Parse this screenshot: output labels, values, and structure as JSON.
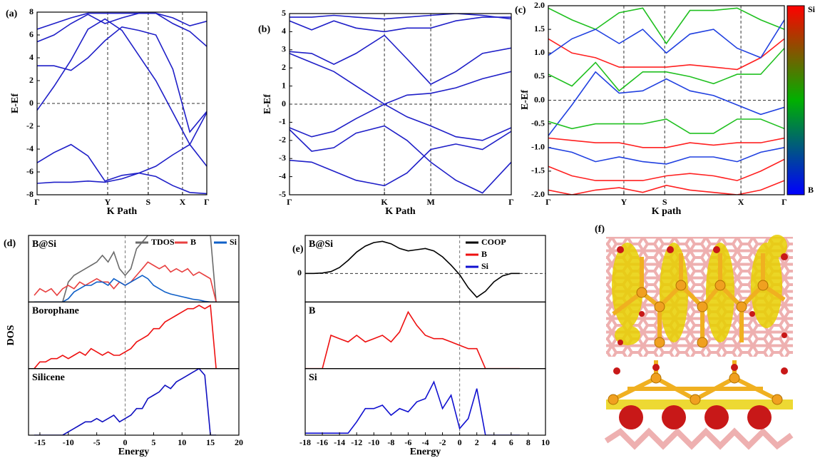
{
  "chart_data": [
    {
      "type": "line",
      "label": "(a)",
      "ylabel": "E-Ef",
      "xlabel": "K Path",
      "kgrid": true,
      "zero_line": true,
      "xlim": [
        0,
        1
      ],
      "xticks": [
        {
          "value": 0,
          "label": "Γ"
        },
        {
          "value": 0.416,
          "label": "Y"
        },
        {
          "value": 0.655,
          "label": "S"
        },
        {
          "value": 0.857,
          "label": "X"
        },
        {
          "value": 1,
          "label": "Γ"
        }
      ],
      "ylim": [
        -8,
        8
      ],
      "yticks": [
        -8,
        -6,
        -4,
        -2,
        0,
        2,
        4,
        6,
        8
      ],
      "x": [
        0,
        0.1,
        0.2,
        0.3,
        0.4,
        0.5,
        0.6,
        0.7,
        0.8,
        0.9,
        1
      ],
      "series": [
        {
          "color": "#1f1fc8",
          "values": [
            -7,
            -6.9,
            -6.9,
            -6.8,
            -6.9,
            -6.6,
            -6.1,
            -6.4,
            -7.2,
            -7.8,
            -7.9
          ]
        },
        {
          "color": "#1f1fc8",
          "values": [
            -5.2,
            -4.3,
            -3.6,
            -4.6,
            -6.8,
            -6.3,
            -6.1,
            -5.5,
            -4.5,
            -3.6,
            -5.5
          ]
        },
        {
          "color": "#1f1fc8",
          "values": [
            -0.6,
            1.5,
            3.8,
            6.5,
            7.4,
            6.4,
            4.2,
            2.0,
            -0.8,
            -3.6,
            -0.8
          ]
        },
        {
          "color": "#1f1fc8",
          "values": [
            3.3,
            3.3,
            2.9,
            4.0,
            5.5,
            6.7,
            6.4,
            6.0,
            3.0,
            -2.5,
            -0.7
          ]
        },
        {
          "color": "#1f1fc8",
          "values": [
            5.4,
            6.0,
            7.0,
            7.8,
            7.0,
            7.5,
            7.9,
            7.9,
            7.0,
            6.3,
            5.0
          ]
        },
        {
          "color": "#1f1fc8",
          "values": [
            6.5,
            7.0,
            7.5,
            7.9,
            7.9,
            7.9,
            7.9,
            7.9,
            7.5,
            6.8,
            7.2
          ]
        }
      ]
    },
    {
      "type": "line",
      "label": "(b)",
      "ylabel": "E-Ef",
      "xlabel": "K Path",
      "kgrid": true,
      "zero_line": true,
      "xlim": [
        0,
        1
      ],
      "xticks": [
        {
          "value": 0,
          "label": "Γ"
        },
        {
          "value": 0.428,
          "label": "K"
        },
        {
          "value": 0.637,
          "label": "M"
        },
        {
          "value": 1,
          "label": "Γ"
        }
      ],
      "ylim": [
        -5,
        5
      ],
      "yticks": [
        -5,
        -4,
        -3,
        -2,
        -1,
        0,
        1,
        2,
        3,
        4,
        5
      ],
      "x": [
        0,
        0.1,
        0.2,
        0.3,
        0.428,
        0.53,
        0.637,
        0.75,
        0.87,
        1
      ],
      "series": [
        {
          "color": "#1f1fc8",
          "values": [
            2.8,
            2.3,
            1.8,
            1.0,
            0,
            0.5,
            0.6,
            0.9,
            1.4,
            1.8
          ]
        },
        {
          "color": "#1f1fc8",
          "values": [
            -1.3,
            -1.8,
            -1.5,
            -0.8,
            0,
            -0.7,
            -1.2,
            -1.8,
            -2.0,
            -1.3
          ]
        },
        {
          "color": "#1f1fc8",
          "values": [
            -3.1,
            -3.2,
            -3.7,
            -4.2,
            -4.5,
            -3.8,
            -2.5,
            -2.2,
            -2.5,
            -1.5
          ]
        },
        {
          "color": "#1f1fc8",
          "values": [
            -1.4,
            -2.6,
            -2.4,
            -1.6,
            -1.2,
            -2.0,
            -3.2,
            -4.2,
            -4.9,
            -3.2
          ]
        },
        {
          "color": "#1f1fc8",
          "values": [
            2.9,
            2.8,
            2.2,
            2.8,
            3.8,
            2.5,
            1.1,
            1.8,
            2.8,
            3.1
          ]
        },
        {
          "color": "#1f1fc8",
          "values": [
            4.6,
            4.1,
            4.6,
            4.2,
            4.0,
            4.2,
            4.2,
            4.6,
            4.8,
            4.8
          ]
        },
        {
          "color": "#1f1fc8",
          "values": [
            4.8,
            4.8,
            4.9,
            4.8,
            4.7,
            4.8,
            4.9,
            5,
            4.9,
            4.7
          ]
        }
      ]
    },
    {
      "type": "line",
      "label": "(c)",
      "ylabel": "E-Ef",
      "xlabel": "K path",
      "kgrid": true,
      "zero_line": true,
      "xlim": [
        0,
        1
      ],
      "xticks": [
        {
          "value": 0,
          "label": "Γ"
        },
        {
          "value": 0.32,
          "label": "Y"
        },
        {
          "value": 0.493,
          "label": "S"
        },
        {
          "value": 0.816,
          "label": "X"
        },
        {
          "value": 1,
          "label": "Γ"
        }
      ],
      "ylim": [
        -2,
        2
      ],
      "yticks": [
        {
          "value": -2,
          "label": "-2.0"
        },
        -1.5,
        {
          "value": -1,
          "label": "-1.0"
        },
        -0.5,
        {
          "value": 0,
          "label": "0.0"
        },
        0.5,
        {
          "value": 1,
          "label": "1.0"
        },
        1.5,
        {
          "value": 2,
          "label": "2.0"
        }
      ],
      "colorbar_colors": [
        "#0000ff",
        "#00b000",
        "#ff0000"
      ],
      "colorbar_top": "Si",
      "colorbar_bottom": "B",
      "x": [
        0,
        0.1,
        0.2,
        0.3,
        0.4,
        0.5,
        0.6,
        0.7,
        0.8,
        0.9,
        1
      ],
      "series": [
        {
          "color": "#ff2020",
          "values": [
            1.3,
            1.0,
            0.9,
            0.7,
            0.7,
            0.7,
            0.75,
            0.7,
            0.65,
            0.9,
            1.3
          ]
        },
        {
          "color": "#20c020",
          "values": [
            0.55,
            0.3,
            0.8,
            0.2,
            0.6,
            0.6,
            0.5,
            0.35,
            0.55,
            0.55,
            1.1
          ]
        },
        {
          "color": "#2040e0",
          "values": [
            -0.75,
            -0.1,
            0.6,
            0.15,
            0.2,
            0.45,
            0.2,
            0.1,
            -0.1,
            -0.3,
            -0.15
          ]
        },
        {
          "color": "#20c020",
          "values": [
            -0.45,
            -0.6,
            -0.5,
            -0.5,
            -0.5,
            -0.4,
            -0.7,
            -0.7,
            -0.4,
            -0.4,
            -0.6
          ]
        },
        {
          "color": "#ff2020",
          "values": [
            -0.8,
            -0.85,
            -0.9,
            -0.9,
            -1.0,
            -1.0,
            -0.9,
            -0.95,
            -0.9,
            -0.9,
            -0.8
          ]
        },
        {
          "color": "#2040e0",
          "values": [
            -1.0,
            -1.1,
            -1.3,
            -1.2,
            -1.3,
            -1.35,
            -1.2,
            -1.2,
            -1.3,
            -1.1,
            -1.0
          ]
        },
        {
          "color": "#ff2020",
          "values": [
            -1.4,
            -1.6,
            -1.7,
            -1.7,
            -1.7,
            -1.6,
            -1.55,
            -1.6,
            -1.7,
            -1.5,
            -1.25
          ]
        },
        {
          "color": "#20c020",
          "values": [
            1.95,
            1.7,
            1.5,
            1.85,
            1.95,
            1.2,
            1.9,
            1.9,
            1.95,
            1.7,
            1.5
          ]
        },
        {
          "color": "#2040e0",
          "values": [
            0.95,
            1.3,
            1.5,
            1.2,
            1.5,
            1.0,
            1.4,
            1.5,
            1.1,
            0.9,
            1.7
          ]
        },
        {
          "color": "#ff2020",
          "values": [
            -1.9,
            -2.0,
            -1.9,
            -1.85,
            -1.95,
            -1.8,
            -1.9,
            -1.95,
            -2.0,
            -1.9,
            -1.7
          ]
        }
      ]
    },
    {
      "type": "line",
      "label": "(d)",
      "ylabel": "DOS",
      "xlabel": "Energy",
      "zero_vline": true,
      "xlim": [
        -17,
        20
      ],
      "xticks": [
        -15,
        -10,
        -5,
        0,
        5,
        10,
        15,
        20
      ],
      "x": [
        -16,
        -15,
        -14,
        -13,
        -12,
        -11,
        -10,
        -9,
        -8,
        -7,
        -6,
        -5,
        -4,
        -3,
        -2,
        -1,
        0,
        1,
        2,
        3,
        4,
        5,
        6,
        7,
        8,
        9,
        10,
        11,
        12,
        13,
        14,
        15,
        16
      ],
      "panels": [
        {
          "title": "B@Si",
          "ylim": [
            0,
            10
          ],
          "series": [
            {
              "name": "TDOS",
              "color": "#6a6a6a",
              "values": [
                0,
                0,
                0,
                0,
                0,
                0,
                3,
                4,
                4.5,
                5,
                5.5,
                6,
                7,
                6,
                7.5,
                5,
                4,
                5,
                8,
                9,
                10,
                10,
                10,
                10,
                10,
                10,
                10,
                10,
                10,
                10,
                10,
                10,
                0
              ]
            },
            {
              "name": "B",
              "color": "#e84040",
              "values": [
                1,
                2,
                1.5,
                2,
                1,
                2,
                2.5,
                2,
                3,
                2.5,
                3,
                3.5,
                3,
                3,
                2,
                3,
                2.5,
                3,
                4,
                5,
                6,
                5.5,
                5,
                5.5,
                4.5,
                5,
                4.5,
                5,
                4,
                4.5,
                4,
                3.5,
                0
              ]
            },
            {
              "name": "Si",
              "color": "#1060c8",
              "values": [
                0,
                0,
                0,
                0,
                0,
                0,
                0.5,
                1.5,
                2,
                2.5,
                2.5,
                3,
                3,
                2.5,
                3.5,
                3,
                2.5,
                3,
                3.5,
                4,
                3.5,
                2.5,
                2,
                1.5,
                1.2,
                1,
                0.8,
                0.6,
                0.4,
                0.3,
                0.1,
                0,
                0
              ]
            }
          ]
        },
        {
          "title": "Borophane",
          "ylim": [
            0,
            10
          ],
          "series": [
            {
              "color": "#ee1010",
              "values": [
                0,
                1,
                1,
                1.5,
                1.5,
                2,
                1.5,
                2,
                2.5,
                2,
                3,
                2.5,
                2,
                2.5,
                2,
                2,
                2.5,
                3,
                4,
                4.5,
                5,
                6,
                6,
                7,
                7.5,
                8,
                8.5,
                9,
                9,
                9.5,
                9,
                9.5,
                0
              ]
            }
          ]
        },
        {
          "title": "Silicene",
          "ylim": [
            0,
            10
          ],
          "series": [
            {
              "color": "#1010c0",
              "values": [
                0,
                0,
                0,
                0,
                0,
                0,
                0.5,
                1,
                1.5,
                2,
                2,
                2.5,
                2,
                2.5,
                3,
                2,
                2.5,
                3,
                4,
                4,
                5.5,
                6,
                6.5,
                7.5,
                7,
                8,
                8.5,
                9,
                9.5,
                10,
                9,
                0,
                0
              ]
            }
          ]
        }
      ]
    },
    {
      "type": "line",
      "label": "(e)",
      "xlabel": "Energy",
      "zero_vline": true,
      "xlim": [
        -18,
        10
      ],
      "xticks": [
        -18,
        -16,
        -14,
        -12,
        -10,
        -8,
        -6,
        -4,
        -2,
        0,
        2,
        4,
        6,
        8,
        10
      ],
      "x": [
        -18,
        -17,
        -16,
        -15,
        -14,
        -13,
        -12,
        -11,
        -10,
        -9,
        -8,
        -7,
        -6,
        -5,
        -4,
        -3,
        -2,
        -1,
        0,
        1,
        2,
        3,
        4,
        5,
        6,
        7
      ],
      "panels": [
        {
          "title": "B@Si",
          "ylim": [
            -1.2,
            1.6
          ],
          "yticks": [
            0
          ],
          "zero_line": true,
          "series": [
            {
              "name": "COOP",
              "color": "#000000",
              "values": [
                0,
                0,
                0.02,
                0.08,
                0.25,
                0.55,
                0.9,
                1.15,
                1.3,
                1.35,
                1.25,
                1.05,
                0.95,
                1.0,
                1.05,
                0.95,
                0.7,
                0.35,
                -0.05,
                -0.6,
                -1.0,
                -0.75,
                -0.35,
                -0.1,
                0,
                0
              ]
            }
          ]
        },
        {
          "title": "B",
          "ylim": [
            0,
            10
          ],
          "series": [
            {
              "name": "B",
              "color": "#ee1010",
              "values": [
                0,
                0,
                0,
                5,
                4.5,
                4,
                5,
                4,
                4.5,
                5,
                4,
                5.5,
                8.5,
                6.5,
                5,
                4.5,
                4.5,
                4,
                3.5,
                3,
                3,
                0,
                0,
                0,
                0,
                0
              ]
            }
          ]
        },
        {
          "title": "Si",
          "ylim": [
            0,
            10
          ],
          "series": [
            {
              "name": "Si",
              "color": "#1010d0",
              "values": [
                0.3,
                0.3,
                0.3,
                0.3,
                0.3,
                0.3,
                2,
                4,
                4,
                4.5,
                3,
                4,
                3.5,
                5,
                5.5,
                8,
                4,
                6,
                1,
                2.5,
                7,
                0,
                0,
                0,
                0,
                0
              ]
            }
          ]
        }
      ]
    },
    {
      "type": "image",
      "label": "(f)"
    }
  ]
}
